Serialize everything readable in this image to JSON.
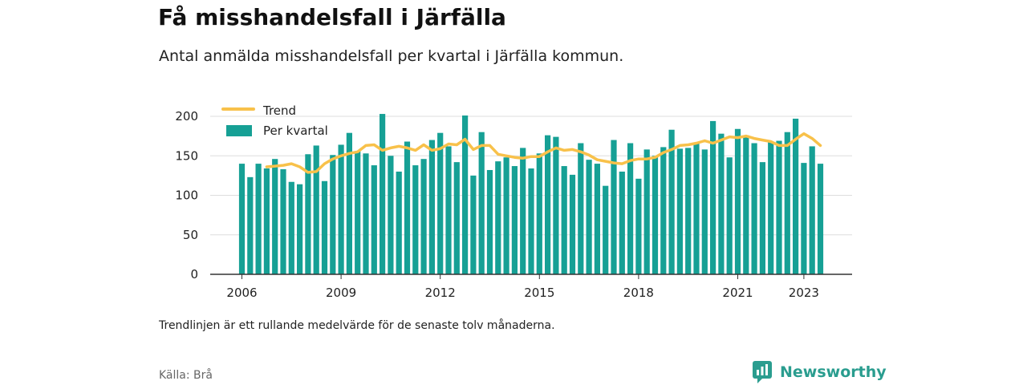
{
  "title": "Få misshandelsfall i Järfälla",
  "subtitle": "Antal anmälda misshandelsfall per kvartal i Järfälla kommun.",
  "note": "Trendlinjen är ett rullande medelvärde för de senaste tolv månaderna.",
  "source": "Källa: Brå",
  "brand": "Newsworthy",
  "chart_data": {
    "type": "bar",
    "colors": {
      "bars": "#16a095",
      "trend": "#f8c14a",
      "grid": "#dddddd",
      "axis": "#333333"
    },
    "ylim": [
      0,
      200
    ],
    "y_ticks": [
      0,
      50,
      100,
      150,
      200
    ],
    "x_tick_labels": [
      "2006",
      "2009",
      "2012",
      "2015",
      "2018",
      "2021",
      "2023"
    ],
    "x_tick_index": [
      0,
      12,
      24,
      36,
      48,
      60,
      68
    ],
    "legend": {
      "position": "top-left",
      "trend_label": "Trend",
      "bars_label": "Per kvartal"
    },
    "series": [
      {
        "name": "Per kvartal",
        "type": "bar",
        "values": [
          140,
          123,
          140,
          134,
          146,
          133,
          117,
          114,
          152,
          163,
          118,
          151,
          164,
          179,
          156,
          153,
          138,
          203,
          150,
          130,
          168,
          138,
          146,
          170,
          179,
          162,
          142,
          201,
          125,
          180,
          132,
          143,
          148,
          137,
          160,
          134,
          153,
          176,
          174,
          137,
          126,
          166,
          145,
          140,
          112,
          170,
          130,
          166,
          121,
          158,
          150,
          161,
          183,
          159,
          160,
          166,
          158,
          194,
          178,
          148,
          184,
          176,
          166,
          142,
          168,
          169,
          180,
          197,
          141,
          162,
          140
        ]
      },
      {
        "name": "Trend",
        "type": "line",
        "values": [
          null,
          null,
          null,
          136,
          137,
          138,
          140,
          136,
          129,
          130,
          140,
          146,
          150,
          153,
          155,
          163,
          164,
          157,
          160,
          162,
          160,
          157,
          164,
          157,
          159,
          165,
          164,
          171,
          158,
          163,
          163,
          152,
          150,
          148,
          147,
          149,
          149,
          155,
          160,
          157,
          158,
          155,
          151,
          145,
          143,
          141,
          140,
          144,
          146,
          146,
          148,
          154,
          158,
          163,
          164,
          166,
          169,
          166,
          170,
          174,
          173,
          175,
          172,
          170,
          168,
          163,
          163,
          171,
          178,
          172,
          163
        ]
      }
    ]
  }
}
